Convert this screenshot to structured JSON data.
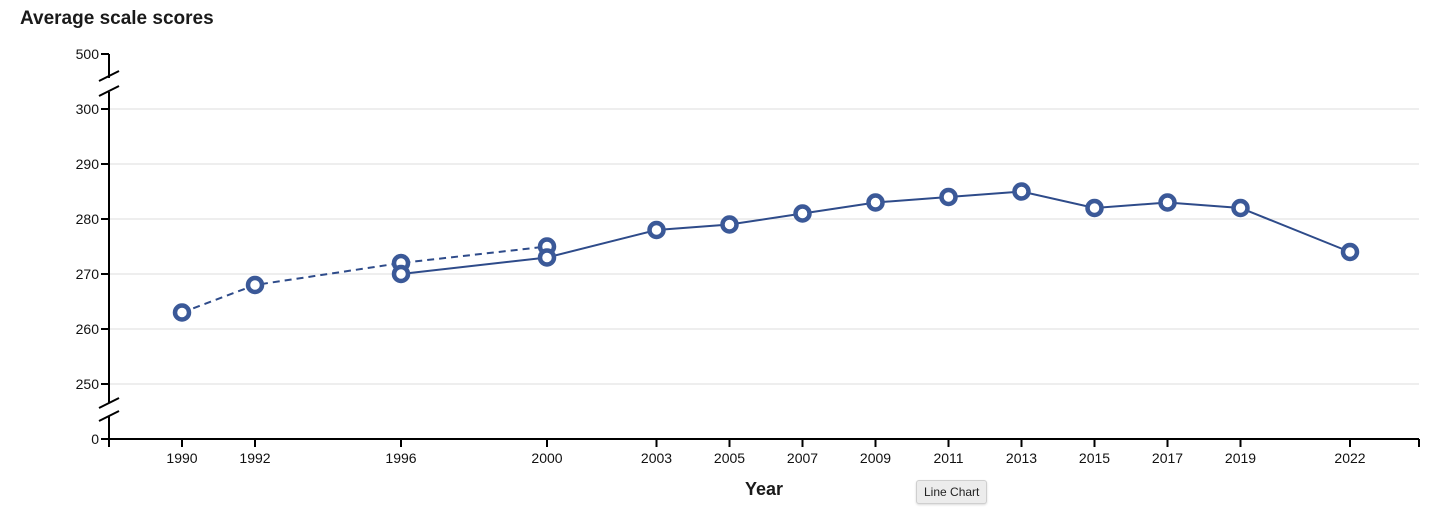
{
  "chart_data": {
    "type": "line",
    "title": "Average scale scores",
    "xlabel": "Year",
    "ylabel": "",
    "y_ticks": [
      0,
      250,
      260,
      270,
      280,
      290,
      300,
      500
    ],
    "y_axis_breaks": [
      "0-250",
      "300-500"
    ],
    "x_ticks": [
      1990,
      1992,
      1996,
      2000,
      2003,
      2005,
      2007,
      2009,
      2011,
      2013,
      2015,
      2017,
      2019,
      2022
    ],
    "grid": true,
    "series": [
      {
        "style": "dashed",
        "x": [
          1990,
          1992,
          1996,
          2000
        ],
        "values": [
          263,
          268,
          272,
          275
        ]
      },
      {
        "style": "solid",
        "x": [
          1996,
          2000,
          2003,
          2005,
          2007,
          2009,
          2011,
          2013,
          2015,
          2017,
          2019,
          2022
        ],
        "values": [
          270,
          273,
          278,
          279,
          281,
          283,
          284,
          285,
          282,
          283,
          282,
          274
        ]
      }
    ],
    "colors": {
      "line": "#2e4b8a",
      "marker": "#3b5998",
      "grid": "#dddddd",
      "axis": "#000000"
    }
  },
  "tooltip": {
    "text": "Line Chart"
  }
}
